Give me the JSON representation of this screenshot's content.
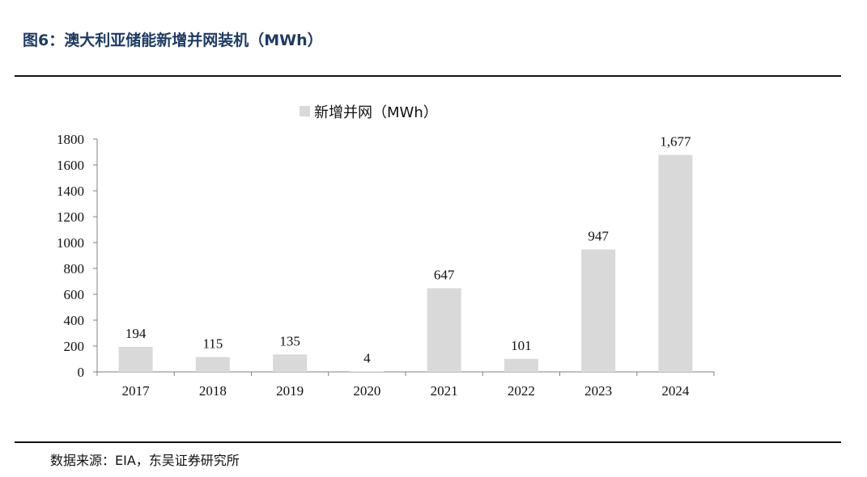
{
  "header": {
    "title": "图6：澳大利亚储能新增并网装机（MWh）"
  },
  "footer": {
    "source": "数据来源：EIA，东吴证券研究所"
  },
  "colors": {
    "bar": "#d9d9d9",
    "title": "#1f3b63",
    "axis": "#808080"
  },
  "chart_data": {
    "type": "bar",
    "title": "",
    "xlabel": "",
    "ylabel": "",
    "categories": [
      "2017",
      "2018",
      "2019",
      "2020",
      "2021",
      "2022",
      "2023",
      "2024"
    ],
    "series": [
      {
        "name": "新增并网（MWh）",
        "values": [
          194,
          115,
          135,
          4,
          647,
          101,
          947,
          1677
        ],
        "labels": [
          "194",
          "115",
          "135",
          "4",
          "647",
          "101",
          "947",
          "1,677"
        ]
      }
    ],
    "yticks": [
      "0",
      "200",
      "400",
      "600",
      "800",
      "1000",
      "1200",
      "1400",
      "1600",
      "1800"
    ],
    "ylim": [
      0,
      1800
    ],
    "grid": false,
    "legend": "top"
  }
}
